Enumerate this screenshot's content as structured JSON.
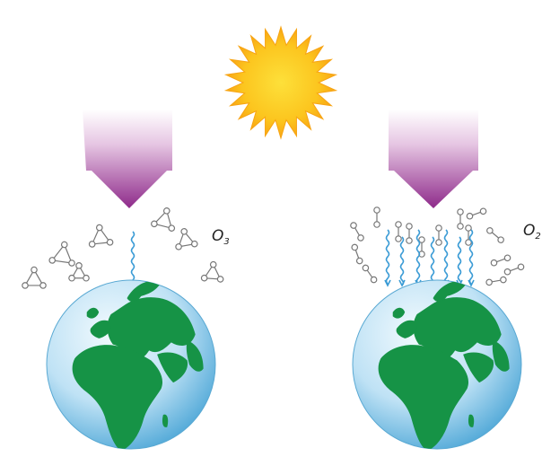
{
  "diagram": {
    "left_panel": {
      "molecule_label": "O",
      "molecule_subscript": "3"
    },
    "right_panel": {
      "molecule_label": "O",
      "molecule_subscript": "2"
    }
  },
  "colors": {
    "sun_outer": "#fbb016",
    "sun_inner": "#fdd21f",
    "arrow_top": "#ffffff",
    "arrow_bottom": "#8e2a8a",
    "ocean_light": "#dff1fb",
    "ocean_dark": "#4aa5d6",
    "land": "#169346",
    "uv_wave": "#3a9bd5",
    "molecule_stroke": "#777777"
  },
  "icons": [
    "sun-icon",
    "uv-arrow-icon",
    "ozone-molecule-icon",
    "oxygen-molecule-icon",
    "earth-globe-icon",
    "uv-wave-icon"
  ]
}
